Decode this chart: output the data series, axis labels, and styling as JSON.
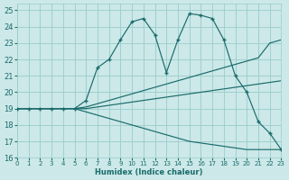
{
  "xlabel": "Humidex (Indice chaleur)",
  "bg_color": "#cce8e8",
  "grid_color": "#99cccc",
  "line_color": "#1a6b6b",
  "xlim": [
    0,
    23
  ],
  "ylim": [
    16,
    25.4
  ],
  "xticks": [
    0,
    1,
    2,
    3,
    4,
    5,
    6,
    7,
    8,
    9,
    10,
    11,
    12,
    13,
    14,
    15,
    16,
    17,
    18,
    19,
    20,
    21,
    22,
    23
  ],
  "yticks": [
    16,
    17,
    18,
    19,
    20,
    21,
    22,
    23,
    24,
    25
  ],
  "s_upper_x": [
    0,
    1,
    2,
    3,
    4,
    5,
    6,
    7,
    8,
    9,
    10,
    11,
    12,
    13,
    14,
    15,
    16,
    17,
    18,
    19,
    20,
    21,
    22,
    23
  ],
  "s_upper_y": [
    19,
    19,
    19,
    19,
    19,
    19,
    19.1,
    19.3,
    19.5,
    19.7,
    19.9,
    20.1,
    20.3,
    20.5,
    20.7,
    20.9,
    21.1,
    21.3,
    21.5,
    21.7,
    21.9,
    22.1,
    23.0,
    23.2
  ],
  "s_mid_x": [
    0,
    1,
    2,
    3,
    4,
    5,
    6,
    7,
    8,
    9,
    10,
    11,
    12,
    13,
    14,
    15,
    16,
    17,
    18,
    19,
    20,
    21,
    22,
    23
  ],
  "s_mid_y": [
    19,
    19,
    19,
    19,
    19,
    19,
    19.0,
    19.1,
    19.2,
    19.3,
    19.4,
    19.5,
    19.6,
    19.7,
    19.8,
    19.9,
    20.0,
    20.1,
    20.2,
    20.3,
    20.4,
    20.5,
    20.6,
    20.7
  ],
  "s_lower_x": [
    0,
    1,
    2,
    3,
    4,
    5,
    6,
    7,
    8,
    9,
    10,
    11,
    12,
    13,
    14,
    15,
    16,
    17,
    18,
    19,
    20,
    21,
    22,
    23
  ],
  "s_lower_y": [
    19,
    19,
    19,
    19,
    19,
    19,
    18.8,
    18.6,
    18.4,
    18.2,
    18.0,
    17.8,
    17.6,
    17.4,
    17.2,
    17.0,
    16.9,
    16.8,
    16.7,
    16.6,
    16.5,
    16.5,
    16.5,
    16.5
  ],
  "s_main_x": [
    0,
    1,
    2,
    3,
    4,
    5,
    6,
    7,
    8,
    9,
    10,
    11,
    12,
    13,
    14,
    15,
    16,
    17,
    18,
    19,
    20,
    21,
    22,
    23
  ],
  "s_main_y": [
    19,
    19,
    19,
    19,
    19,
    19,
    19.5,
    21.5,
    22.0,
    23.2,
    24.3,
    24.5,
    23.5,
    21.2,
    23.2,
    24.8,
    24.7,
    24.5,
    23.2,
    21.0,
    20.0,
    18.2,
    17.5,
    16.5
  ]
}
